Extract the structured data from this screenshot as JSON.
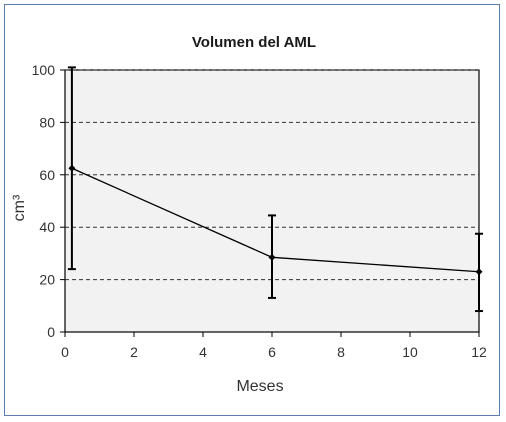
{
  "chart_data": {
    "type": "line",
    "title": "Volumen del AML",
    "xlabel": "Meses",
    "ylabel": "cm³",
    "xlim": [
      0,
      12
    ],
    "ylim": [
      0,
      100
    ],
    "x_ticks": [
      0,
      2,
      4,
      6,
      8,
      10,
      12
    ],
    "y_ticks": [
      0,
      20,
      40,
      60,
      80,
      100
    ],
    "grid": "horizontal-dashed",
    "colors": {
      "plot_background": "#f2f2f2",
      "line": "#000000",
      "frame_border": "#5b7fb0"
    },
    "series": [
      {
        "points": [
          {
            "x": 0.2,
            "y": 62.5,
            "err_low": 24,
            "err_high": 101
          },
          {
            "x": 6,
            "y": 28.5,
            "err_low": 13,
            "err_high": 44.5
          },
          {
            "x": 12,
            "y": 23,
            "err_low": 8,
            "err_high": 37.5
          }
        ]
      }
    ]
  }
}
